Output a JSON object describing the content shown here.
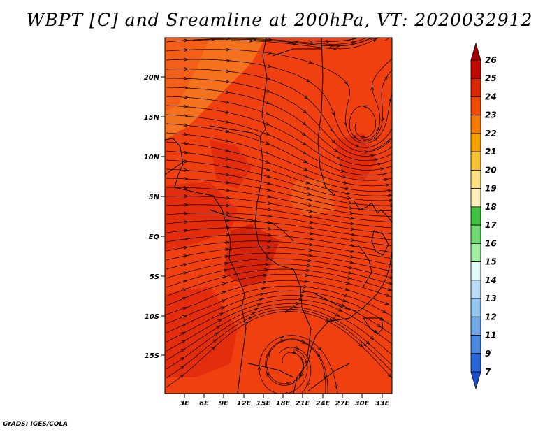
{
  "title": "WBPT [C] and Sreamline at 200hPa, VT: 2020032912",
  "credit": "GrADS: IGES/COLA",
  "map": {
    "lat_labels": [
      "20N",
      "15N",
      "10N",
      "5N",
      "EQ",
      "5S",
      "10S",
      "15S"
    ],
    "lon_labels": [
      "3E",
      "6E",
      "9E",
      "12E",
      "15E",
      "18E",
      "21E",
      "24E",
      "27E",
      "30E",
      "33E"
    ],
    "fill_colors": {
      "base": "#f04010",
      "warm": "#e02a0c",
      "hot": "#d21f08",
      "cool": "#f25a18",
      "pale": "#f47a20"
    },
    "streamline_color": "#000000",
    "coast_color": "#000000"
  },
  "colorbar": {
    "labels": [
      "26",
      "25",
      "24",
      "23",
      "22",
      "21",
      "20",
      "19",
      "18",
      "17",
      "16",
      "15",
      "14",
      "13",
      "12",
      "11",
      "9",
      "7"
    ],
    "colors": [
      "#a50000",
      "#c40a00",
      "#dc2800",
      "#f04a00",
      "#f47a00",
      "#f4a000",
      "#f6c030",
      "#fae080",
      "#fcf0b8",
      "#40c040",
      "#70d870",
      "#a0eca0",
      "#e0f8f8",
      "#b8dcf8",
      "#90c4f0",
      "#70a8e8",
      "#4888e0",
      "#2868d8",
      "#1850d0"
    ]
  }
}
